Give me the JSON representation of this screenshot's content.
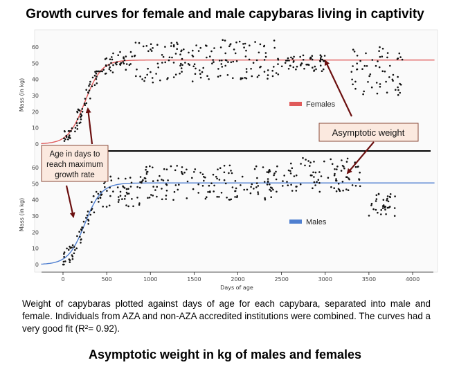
{
  "title": "Growth curves for female and male capybaras living in captivity",
  "caption": "Weight of capybaras plotted against days of age for each capybara, separated into male and female. Individuals from AZA and non-AZA accredited institutions were combined. The curves had a very good fit (R²= 0.92).",
  "subtitle": "Asymptotic weight in kg of males and females",
  "annotations": {
    "asymptotic": "Asymptotic weight",
    "growth_rate_lines": [
      "Age in days to",
      "reach maximum",
      "growth rate"
    ]
  },
  "colors": {
    "females": "#e05a5a",
    "males": "#4f7fd0",
    "arrow": "#6b0f0f",
    "annotation_box": "#fbe9df",
    "points": "#111111"
  },
  "chart_data": [
    {
      "type": "scatter",
      "panel": "top",
      "ylabel": "Mass (in kg)",
      "ylim": [
        0,
        65
      ],
      "yticks": [
        0,
        10,
        20,
        30,
        40,
        50,
        60
      ],
      "xlim": [
        -250,
        4250
      ],
      "legend": "Females",
      "fit": {
        "asymptote": 52,
        "inflection_day": 250
      },
      "point_clusters": [
        {
          "x_range": [
            0,
            100
          ],
          "y_range": [
            0,
            8
          ]
        },
        {
          "x_range": [
            100,
            250
          ],
          "y_range": [
            5,
            30
          ]
        },
        {
          "x_range": [
            250,
            450
          ],
          "y_range": [
            20,
            45
          ]
        },
        {
          "x_range": [
            450,
            800
          ],
          "y_range": [
            38,
            60
          ]
        },
        {
          "x_range": [
            800,
            1500
          ],
          "y_range": [
            38,
            63
          ]
        },
        {
          "x_range": [
            1500,
            2500
          ],
          "y_range": [
            40,
            65
          ]
        },
        {
          "x_range": [
            2500,
            3000
          ],
          "y_range": [
            45,
            55
          ]
        },
        {
          "x_range": [
            3300,
            3900
          ],
          "y_range": [
            30,
            61
          ]
        }
      ]
    },
    {
      "type": "scatter",
      "panel": "bottom",
      "ylabel": "Mass (in kg)",
      "xlabel": "Days of age",
      "ylim": [
        0,
        65
      ],
      "yticks": [
        0,
        10,
        20,
        30,
        40,
        50,
        60
      ],
      "xlim": [
        -250,
        4250
      ],
      "xticks": [
        0,
        500,
        1000,
        1500,
        2000,
        2500,
        3000,
        3500,
        4000
      ],
      "legend": "Males",
      "fit": {
        "asymptote": 50.5,
        "inflection_day": 250
      },
      "point_clusters": [
        {
          "x_range": [
            0,
            150
          ],
          "y_range": [
            0,
            12
          ]
        },
        {
          "x_range": [
            150,
            450
          ],
          "y_range": [
            10,
            45
          ]
        },
        {
          "x_range": [
            450,
            900
          ],
          "y_range": [
            35,
            55
          ]
        },
        {
          "x_range": [
            900,
            2500
          ],
          "y_range": [
            40,
            62
          ]
        },
        {
          "x_range": [
            2500,
            3400
          ],
          "y_range": [
            45,
            66
          ]
        },
        {
          "x_range": [
            3500,
            3800
          ],
          "y_range": [
            30,
            45
          ]
        }
      ]
    }
  ]
}
